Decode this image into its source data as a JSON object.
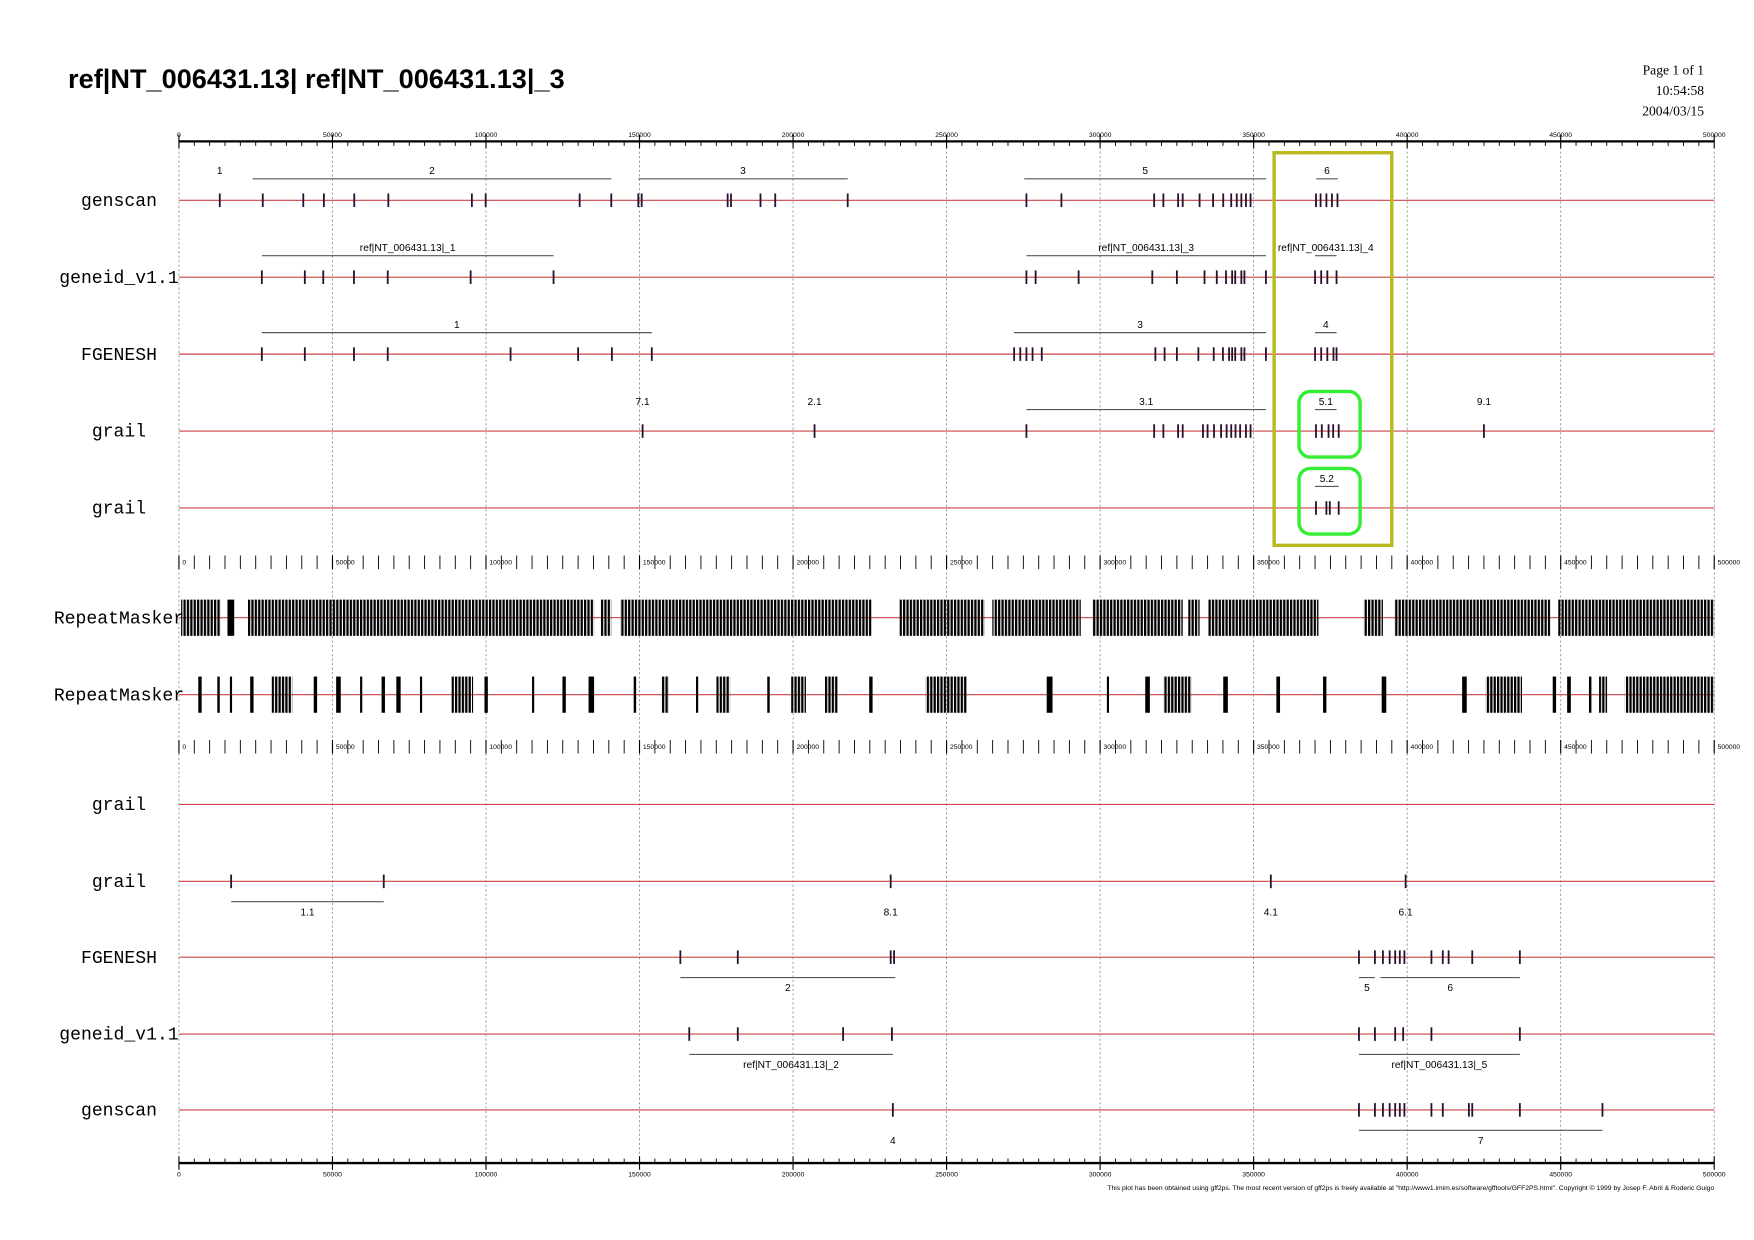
{
  "header": {
    "title": "ref|NT_006431.13| ref|NT_006431.13|_3",
    "page": "Page 1 of 1",
    "time": "10:54:58",
    "date": "2004/03/15"
  },
  "axis": {
    "lim": [
      0,
      500000
    ],
    "ticks": [
      0,
      50000,
      100000,
      150000,
      200000,
      250000,
      300000,
      350000,
      400000,
      450000,
      500000
    ]
  },
  "panels": [
    {
      "tracks": [
        {
          "name": "genscan",
          "genes": [
            {
              "label": "1",
              "exons": [
                13300
              ]
            },
            {
              "label": "2",
              "span": [
                24000,
                140800
              ],
              "exons": [
                27300,
                40500,
                47200,
                57100,
                68200,
                95400,
                99900,
                130500,
                140800
              ]
            },
            {
              "label": "3",
              "span": [
                149600,
                217800
              ],
              "exons": [
                149600,
                150700,
                178700,
                179800,
                189400,
                194200,
                217800
              ]
            },
            {
              "label": "5",
              "span": [
                275300,
                354100
              ],
              "exons": [
                276000,
                287400,
                317600,
                320600,
                325400,
                326900,
                332400,
                336800,
                340100,
                342700,
                344500,
                346000,
                347500,
                349000
              ]
            },
            {
              "label": "6",
              "span": [
                370400,
                377400
              ],
              "exons": [
                370300,
                371800,
                373700,
                375500,
                377300
              ]
            }
          ]
        },
        {
          "name": "geneid_v1.1",
          "genes": [
            {
              "label": "ref|NT_006431.13|_1",
              "span": [
                27000,
                122000
              ],
              "exons": [
                27000,
                41000,
                47000,
                57000,
                68000,
                95000,
                122000
              ]
            },
            {
              "label": "ref|NT_006431.13|_3",
              "span": [
                276000,
                354000
              ],
              "exons": [
                276000,
                279000,
                293000,
                317000,
                325000,
                334000,
                338000,
                341000,
                343000,
                344000,
                346000,
                347000,
                354000
              ]
            },
            {
              "label": "ref|NT_006431.13|_4",
              "span": [
                370000,
                377000
              ],
              "exons": [
                370000,
                372000,
                374000,
                377000
              ]
            }
          ]
        },
        {
          "name": "FGENESH",
          "genes": [
            {
              "label": "1",
              "span": [
                27000,
                154000
              ],
              "exons": [
                27000,
                41000,
                57000,
                68000,
                108000,
                130000,
                141000,
                154000
              ]
            },
            {
              "label": "3",
              "span": [
                272000,
                354000
              ],
              "exons": [
                272000,
                274000,
                276000,
                278000,
                281000,
                318000,
                321000,
                325000,
                332000,
                337000,
                340000,
                342000,
                343000,
                344000,
                346000,
                347000,
                354000
              ]
            },
            {
              "label": "4",
              "span": [
                370000,
                377000
              ],
              "exons": [
                370000,
                372000,
                374000,
                376000,
                377000
              ]
            }
          ]
        },
        {
          "name": "grail",
          "genes": [
            {
              "label": "7.1",
              "exons": [
                151000
              ]
            },
            {
              "label": "2.1",
              "exons": [
                207000
              ]
            },
            {
              "label": "3.1",
              "span": [
                276000,
                354000
              ],
              "exons": [
                276000,
                317600,
                320600,
                325400,
                326900,
                333500,
                335000,
                337100,
                339400,
                341200,
                342700,
                344100,
                345600,
                347500,
                349000
              ]
            },
            {
              "label": "5.1",
              "span": [
                370000,
                377000
              ],
              "exons": [
                370300,
                372200,
                374400,
                375900,
                377700
              ]
            },
            {
              "label": "9.1",
              "exons": [
                425000
              ]
            }
          ]
        },
        {
          "name": "grail",
          "genes": [
            {
              "label": "5.2",
              "span": [
                370000,
                377700
              ],
              "exons": [
                370300,
                373700,
                374800,
                377700
              ]
            }
          ]
        }
      ]
    },
    {
      "tracks": [
        {
          "name": "RepeatMasker",
          "repeats": [
            [
              700,
              13600
            ],
            [
              15800,
              18000
            ],
            [
              22500,
              135200
            ],
            [
              137400,
              140800
            ],
            [
              143700,
              225500
            ],
            [
              234700,
              262400
            ],
            [
              264900,
              293700
            ],
            [
              297400,
              326900
            ],
            [
              328700,
              332400
            ],
            [
              335000,
              371100
            ],
            [
              385800,
              392100
            ],
            [
              395800,
              446600
            ],
            [
              449200,
              500000
            ]
          ]
        },
        {
          "name": "RepeatMasker",
          "repeats": [
            [
              6300,
              7400
            ],
            [
              12500,
              13300
            ],
            [
              16600,
              17300
            ],
            [
              23200,
              24300
            ],
            [
              30200,
              36900
            ],
            [
              43900,
              45000
            ],
            [
              51200,
              52700
            ],
            [
              59000,
              59700
            ],
            [
              66000,
              67100
            ],
            [
              70800,
              72200
            ],
            [
              78500,
              79200
            ],
            [
              88800,
              95800
            ],
            [
              99500,
              100600
            ],
            [
              115000,
              115700
            ],
            [
              124900,
              126000
            ],
            [
              133400,
              135200
            ],
            [
              148100,
              148900
            ],
            [
              157000,
              159600
            ],
            [
              168400,
              169100
            ],
            [
              175000,
              179500
            ],
            [
              191600,
              192400
            ],
            [
              199400,
              204200
            ],
            [
              210400,
              214800
            ],
            [
              224800,
              225900
            ],
            [
              243200,
              256800
            ],
            [
              282600,
              284500
            ],
            [
              302200,
              302900
            ],
            [
              314700,
              316200
            ],
            [
              320600,
              329800
            ],
            [
              340100,
              341600
            ],
            [
              357400,
              358600
            ],
            [
              372600,
              373700
            ],
            [
              391700,
              393200
            ],
            [
              417900,
              419400
            ],
            [
              425600,
              437400
            ],
            [
              447400,
              448500
            ],
            [
              452100,
              453300
            ],
            [
              459200,
              460000
            ],
            [
              462500,
              465100
            ],
            [
              470900,
              500000
            ]
          ]
        }
      ]
    },
    {
      "tracks": [
        {
          "name": "grail",
          "genes": []
        },
        {
          "name": "grail",
          "genes": [
            {
              "label": "1.1",
              "span": [
                17000,
                66700
              ],
              "exons": [
                17000,
                66700
              ]
            },
            {
              "label": "8.1",
              "exons": [
                231800
              ]
            },
            {
              "label": "4.1",
              "exons": [
                355600
              ]
            },
            {
              "label": "6.1",
              "exons": [
                399500
              ]
            }
          ]
        },
        {
          "name": "FGENESH",
          "genes": [
            {
              "label": "2",
              "span": [
                163300,
                233300
              ],
              "exons": [
                163300,
                182000,
                231800,
                232900
              ]
            },
            {
              "label": "5",
              "span": [
                384300,
                389500
              ],
              "exons": [
                384300
              ]
            },
            {
              "label": "6",
              "span": [
                391300,
                436700
              ],
              "exons": [
                389500,
                392100,
                394300,
                396100,
                397600,
                399100,
                407900,
                411600,
                413500,
                421200,
                436700
              ]
            }
          ]
        },
        {
          "name": "geneid_v1.1",
          "genes": [
            {
              "label": "ref|NT_006431.13|_2",
              "span": [
                166200,
                232500
              ],
              "exons": [
                166200,
                182000,
                216300,
                232200
              ]
            },
            {
              "label": "ref|NT_006431.13|_5",
              "span": [
                384300,
                436700
              ],
              "exons": [
                384300,
                389500,
                396100,
                398700,
                407900,
                436700
              ]
            }
          ]
        },
        {
          "name": "genscan",
          "genes": [
            {
              "label": "4",
              "exons": [
                232500
              ]
            },
            {
              "label": "7",
              "span": [
                384300,
                463600
              ],
              "exons": [
                384300,
                389500,
                392100,
                394300,
                396100,
                397600,
                399100,
                407900,
                411600,
                420100,
                421200,
                436700,
                463600
              ]
            }
          ]
        }
      ]
    }
  ],
  "footer": "This plot has been obtained using gff2ps. The most recent version of gff2ps is freely available at \"http://www1.imim.es/software/gfftools/GFF2PS.html\". Copyright © 1999 by Josep F. Abril & Roderic Guigo"
}
